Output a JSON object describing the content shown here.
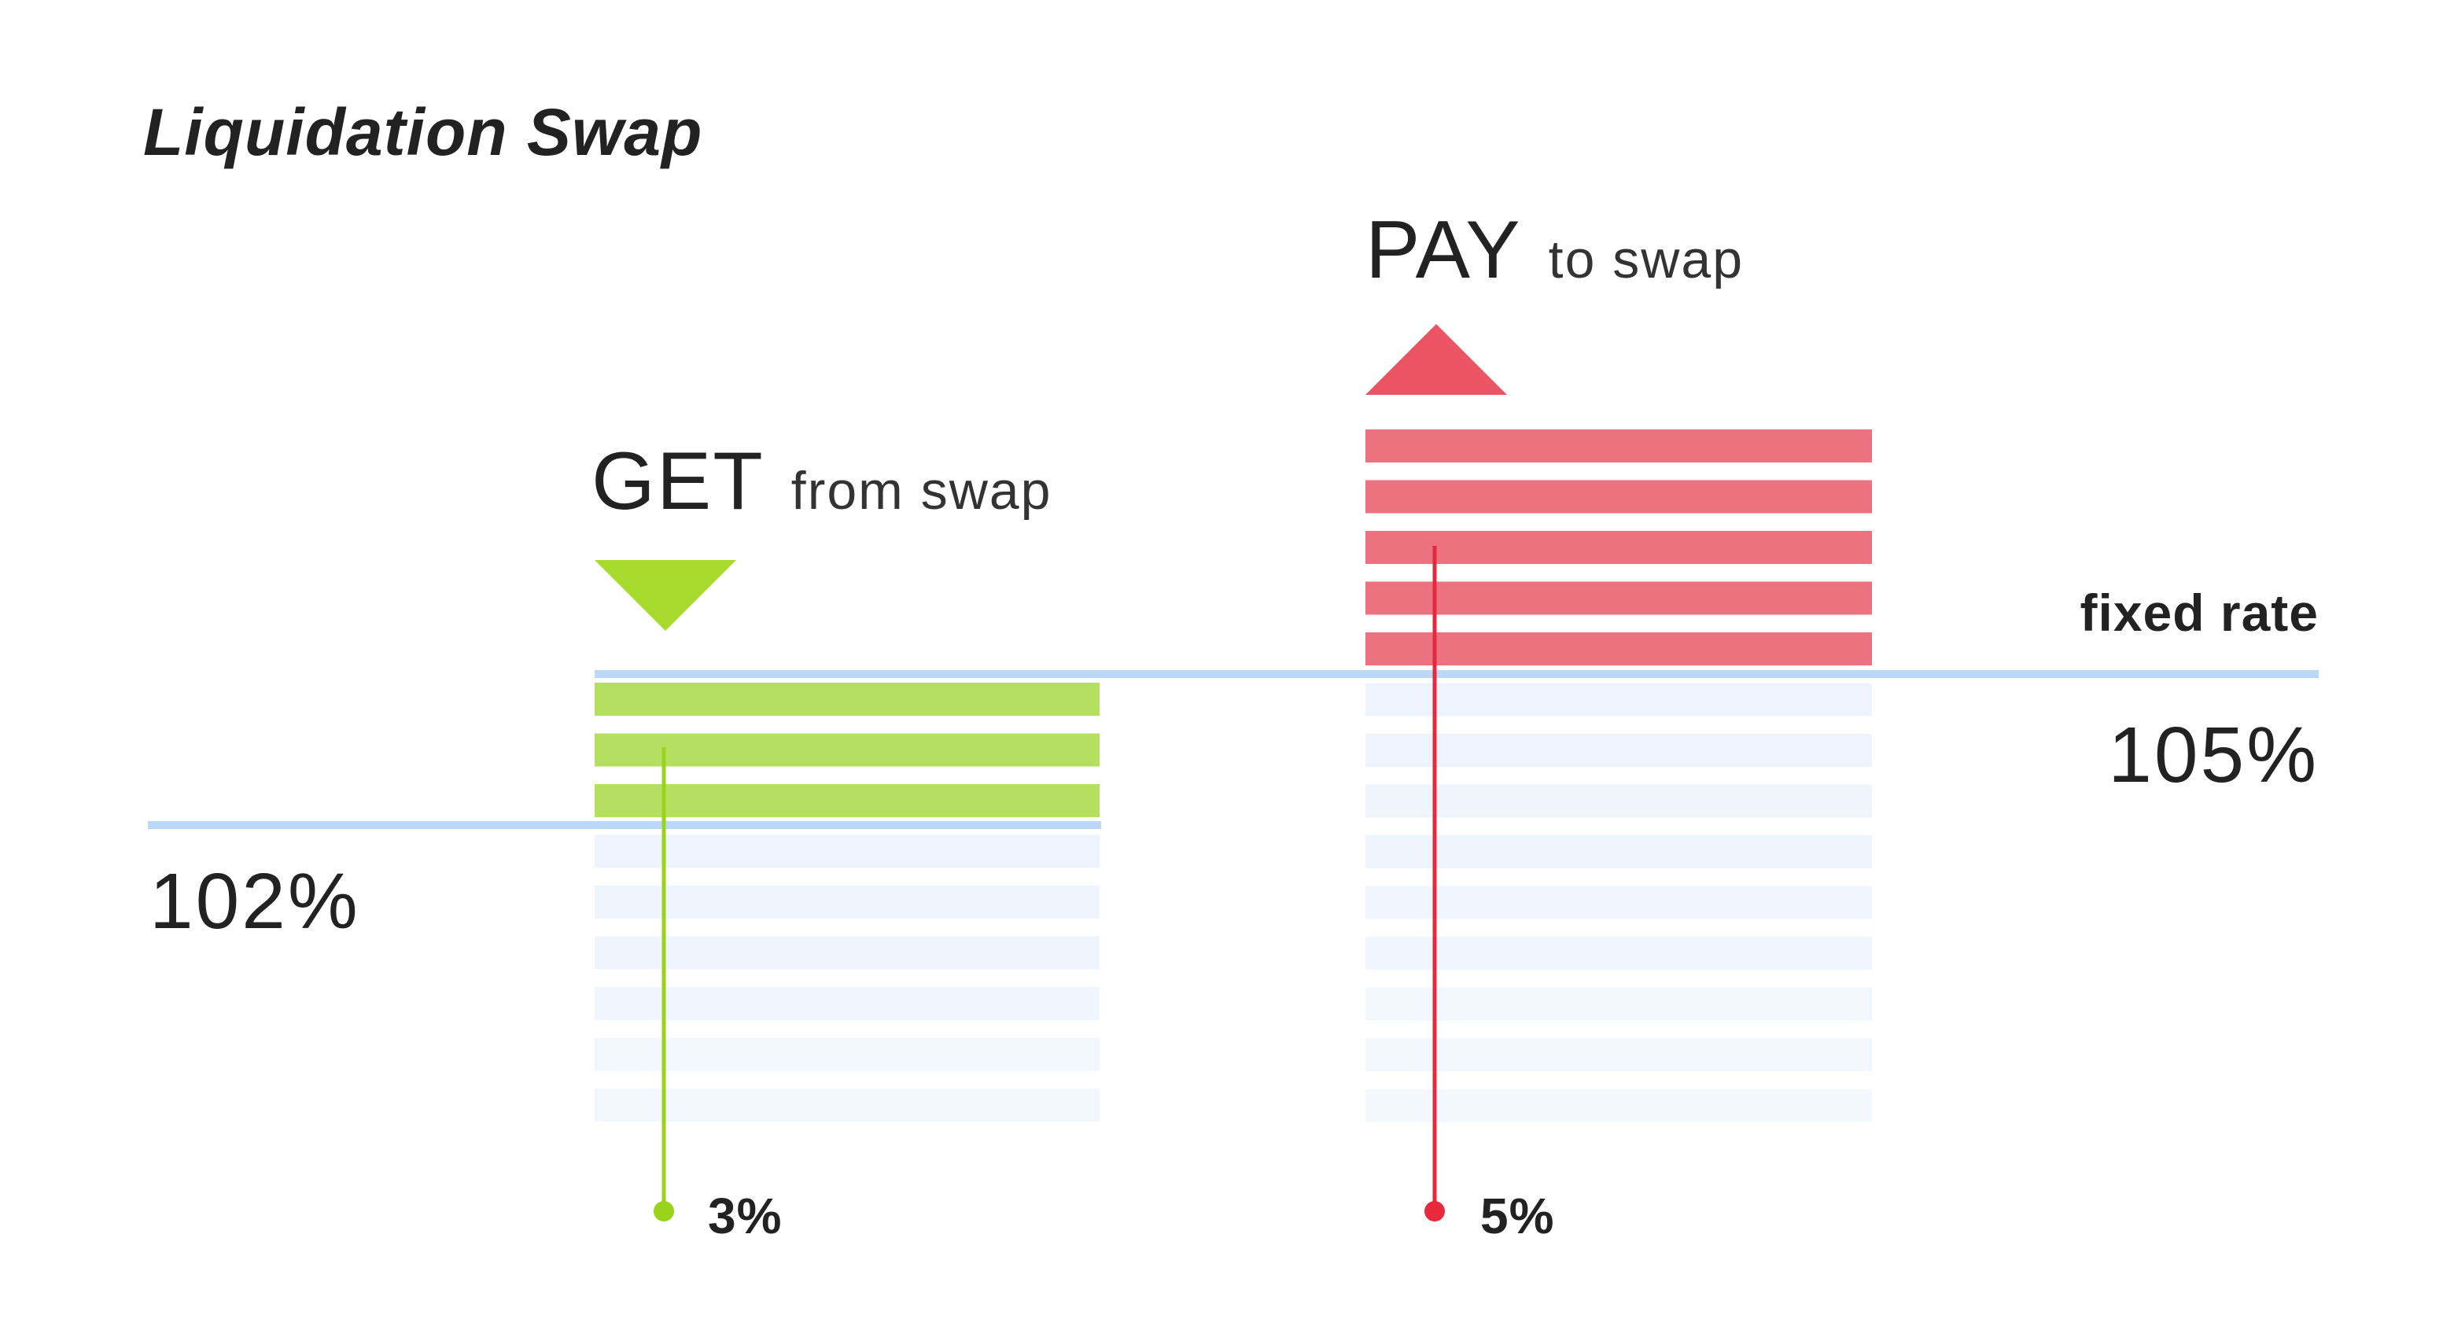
{
  "title": "Liquidation Swap",
  "pay": {
    "strong": "PAY",
    "light": "to swap",
    "percent": "5%",
    "stripes_above_line": 5,
    "color": "#ec7280",
    "arrow_color": "#eb5463",
    "marker_color": "#e8283d"
  },
  "get": {
    "strong": "GET",
    "light": "from swap",
    "percent": "3%",
    "stripes_above_line": 3,
    "color": "#b3e060",
    "arrow_color": "#a6da2d",
    "marker_color": "#99d31c"
  },
  "fixed_rate": {
    "label": "fixed rate",
    "value": "105%"
  },
  "low_rate": {
    "value": "102%"
  },
  "colors": {
    "rate_line": "#bcd8f8",
    "faded_stripe": "#edf4fd",
    "text": "#222222"
  }
}
